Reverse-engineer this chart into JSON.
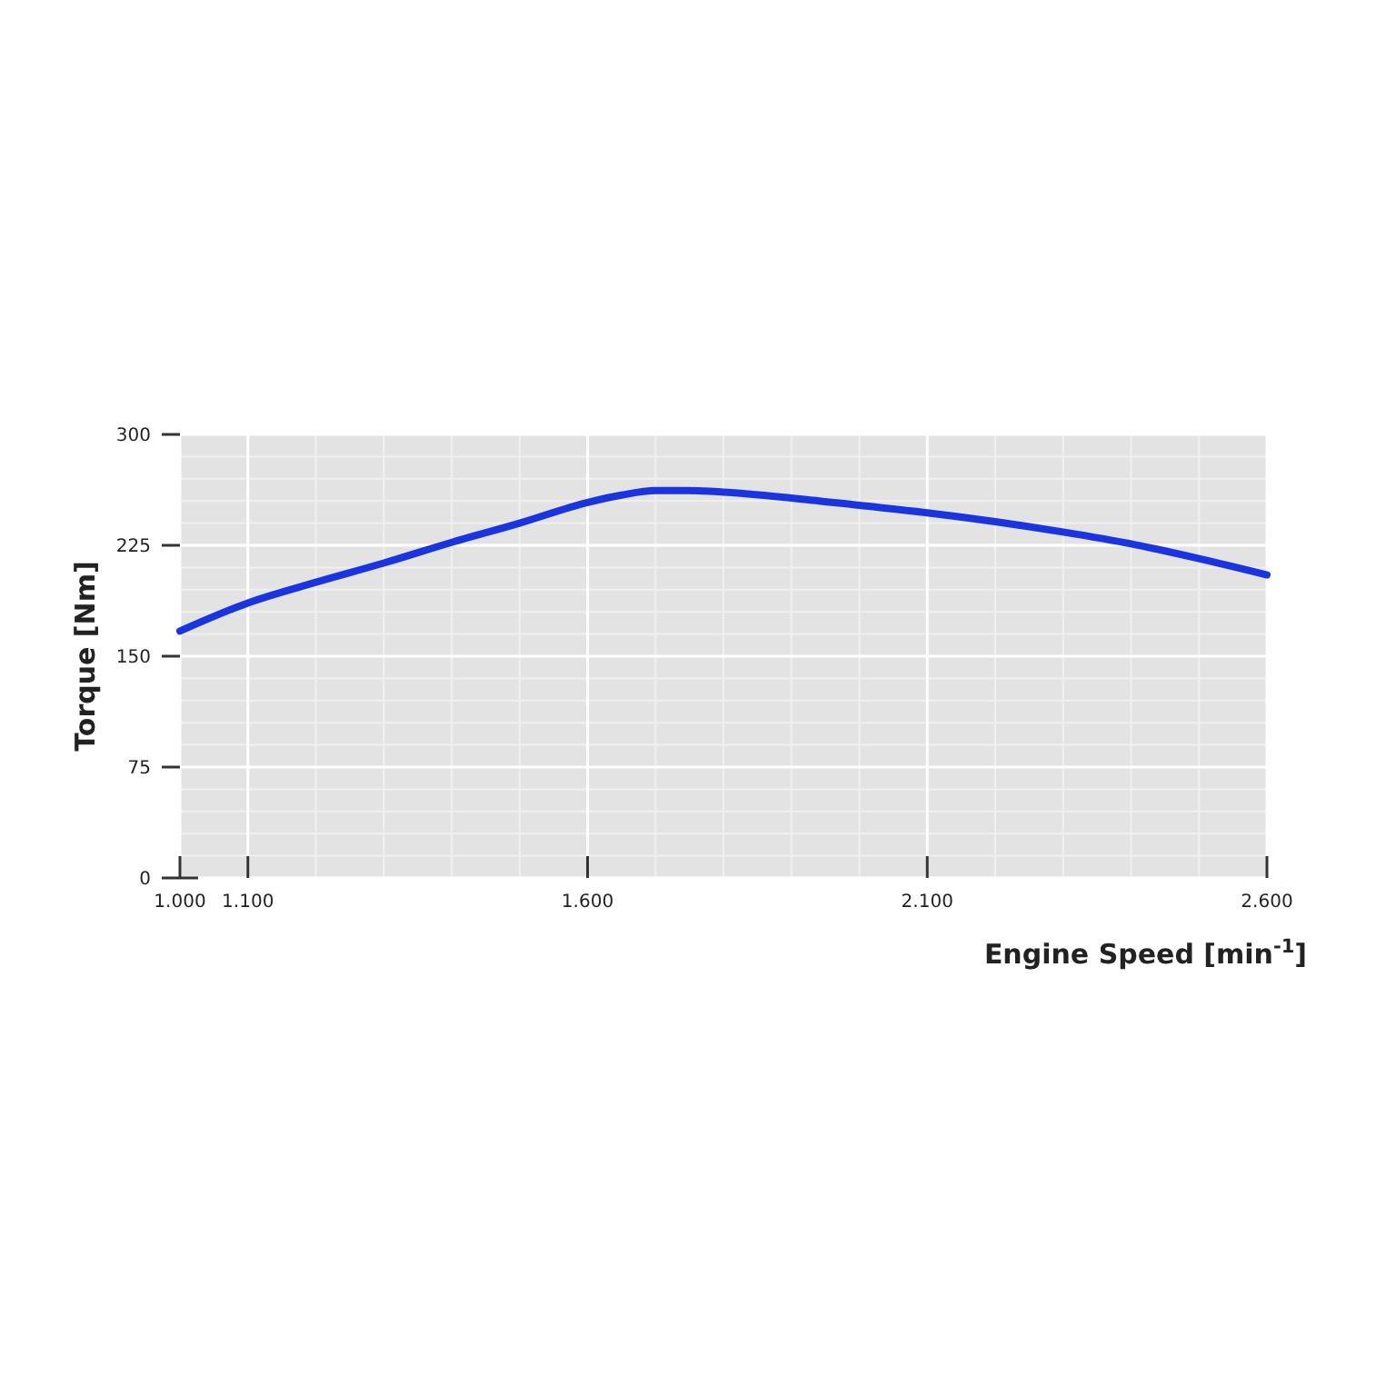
{
  "chart_data": {
    "type": "line",
    "xlabel": "Engine Speed [min$^{-1}$]",
    "ylabel": "Torque [Nm]",
    "x": [
      1000,
      1100,
      1200,
      1300,
      1400,
      1500,
      1600,
      1650,
      1700,
      1750,
      1800,
      1900,
      2000,
      2100,
      2200,
      2300,
      2400,
      2500,
      2600
    ],
    "series": [
      {
        "color": "#1a35e0",
        "values": [
          167,
          186,
          200,
          213,
          227,
          240,
          254,
          259,
          262,
          262,
          261,
          257,
          252,
          247,
          241,
          234,
          226,
          216,
          205
        ]
      }
    ],
    "xlim": [
      1000,
      2600
    ],
    "xticks": [
      {
        "value": 1000,
        "label": "1.000"
      },
      {
        "value": 1100,
        "label": "1.100"
      },
      {
        "value": 1600,
        "label": "1.600"
      },
      {
        "value": 2100,
        "label": "2.100"
      },
      {
        "value": 2600,
        "label": "2.600"
      }
    ],
    "ylim": [
      0,
      300
    ],
    "yticks": [
      0,
      75,
      150,
      225,
      300
    ],
    "grid": true,
    "line_style": "solid",
    "marker": "none"
  }
}
